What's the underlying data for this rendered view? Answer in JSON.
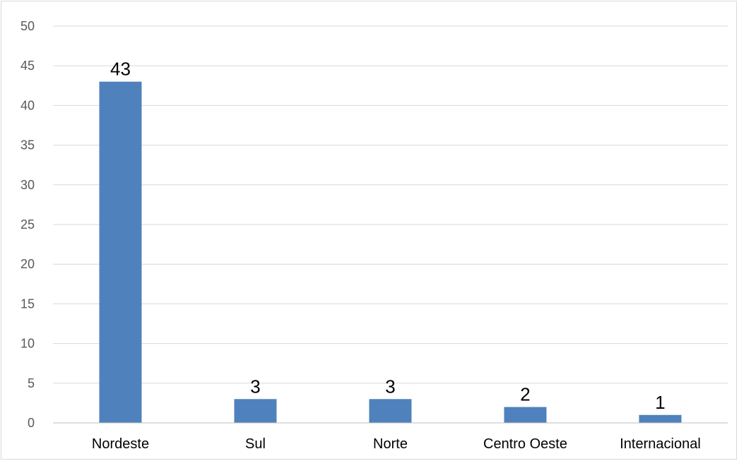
{
  "chart_data": {
    "type": "bar",
    "title": "",
    "xlabel": "",
    "ylabel": "",
    "categories": [
      "Nordeste",
      "Sul",
      "Norte",
      "Centro Oeste",
      "Internacional"
    ],
    "values": [
      43,
      3,
      3,
      2,
      1
    ],
    "ylim": [
      0,
      50
    ],
    "yticks": [
      0,
      5,
      10,
      15,
      20,
      25,
      30,
      35,
      40,
      45,
      50
    ],
    "grid": true,
    "legend": "none",
    "data_labels": true
  },
  "colors": {
    "bar": "#4f81bd",
    "grid": "#d9d9d9",
    "axis": "#bfbfbf"
  }
}
